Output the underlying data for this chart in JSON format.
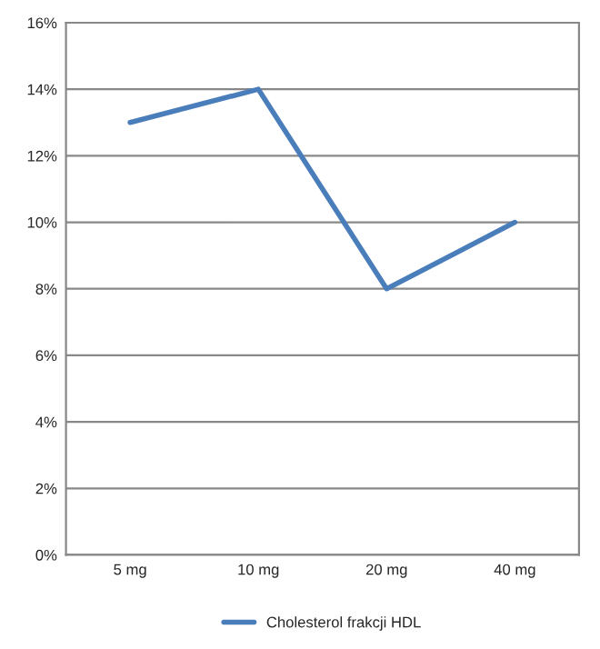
{
  "chart_data": {
    "type": "line",
    "categories": [
      "5 mg",
      "10 mg",
      "20 mg",
      "40 mg"
    ],
    "series": [
      {
        "name": "Cholesterol frakcji HDL",
        "color": "#4a7ebb",
        "values": [
          13,
          14,
          8,
          10
        ]
      }
    ],
    "ylim": [
      0,
      16
    ],
    "yticks": [
      {
        "value": 0,
        "label": "0%"
      },
      {
        "value": 2,
        "label": "2%"
      },
      {
        "value": 4,
        "label": "4%"
      },
      {
        "value": 6,
        "label": "6%"
      },
      {
        "value": 8,
        "label": "8%"
      },
      {
        "value": 10,
        "label": "10%"
      },
      {
        "value": 12,
        "label": "12%"
      },
      {
        "value": 14,
        "label": "14%"
      },
      {
        "value": 16,
        "label": "16%"
      }
    ],
    "grid": "y",
    "legend": "bottom",
    "line_style": "solid",
    "marker": "none"
  }
}
